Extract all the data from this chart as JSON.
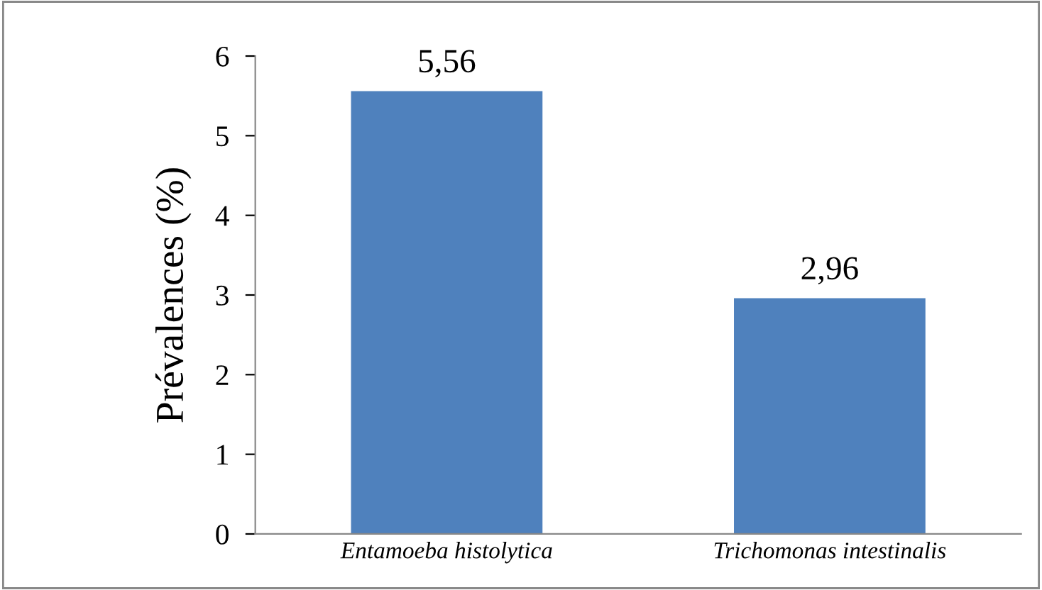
{
  "chart_data": {
    "type": "bar",
    "ylabel": "Prévalences (%)",
    "categories": [
      "Entamoeba histolytica",
      "Trichomonas intestinalis"
    ],
    "values": [
      5.56,
      2.96
    ],
    "value_labels": [
      "5,56",
      "2,96"
    ],
    "color": "#4f81bd",
    "ylim": [
      0,
      6
    ],
    "yticks": [
      0,
      1,
      2,
      3,
      4,
      5,
      6
    ]
  }
}
